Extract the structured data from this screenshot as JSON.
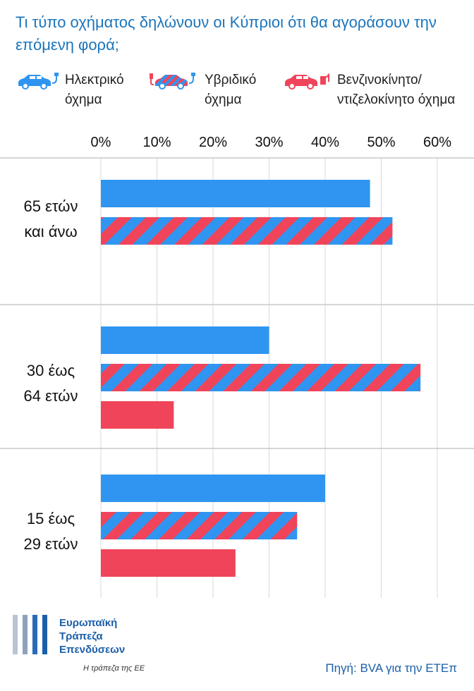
{
  "title": "Τι τύπο οχήματος δηλώνουν οι Κύπριοι ότι θα αγοράσουν την επόμενη φορά;",
  "legend": [
    {
      "label": "Ηλεκτρικό όχημα",
      "icon": "electric-car-icon"
    },
    {
      "label": "Υβριδικό όχημα",
      "icon": "hybrid-car-icon"
    },
    {
      "label": "Βενζινοκίνητο/ ντιζελοκίνητο όχημα",
      "icon": "fuel-car-icon"
    }
  ],
  "colors": {
    "electric": "#2f95f0",
    "hybrid_stripe": "#f0445a",
    "fuel": "#f0445a",
    "title": "#1b75bc"
  },
  "chart_data": {
    "type": "bar",
    "orientation": "horizontal",
    "title": "Τι τύπο οχήματος δηλώνουν οι Κύπριοι ότι θα αγοράσουν την επόμενη φορά;",
    "categories": [
      "65 ετών και άνω",
      "30 έως 64 ετών",
      "15 έως 29 ετών"
    ],
    "series": [
      {
        "name": "Ηλεκτρικό όχημα",
        "values": [
          48,
          30,
          40
        ]
      },
      {
        "name": "Υβριδικό όχημα",
        "values": [
          52,
          57,
          35
        ]
      },
      {
        "name": "Βενζινοκίνητο/ ντιζελοκίνητο όχημα",
        "values": [
          null,
          13,
          24
        ]
      }
    ],
    "xlim": [
      0,
      60
    ],
    "ticks": [
      "0%",
      "10%",
      "20%",
      "30%",
      "40%",
      "50%",
      "60%"
    ],
    "grid": true,
    "legend_position": "top"
  },
  "logo": {
    "name": "Ευρωπαϊκή\nΤράπεζα\nΕπενδύσεων",
    "tagline": "Η τράπεζα της ΕΕ"
  },
  "source": "Πηγή: BVA για την ΕΤΕπ"
}
